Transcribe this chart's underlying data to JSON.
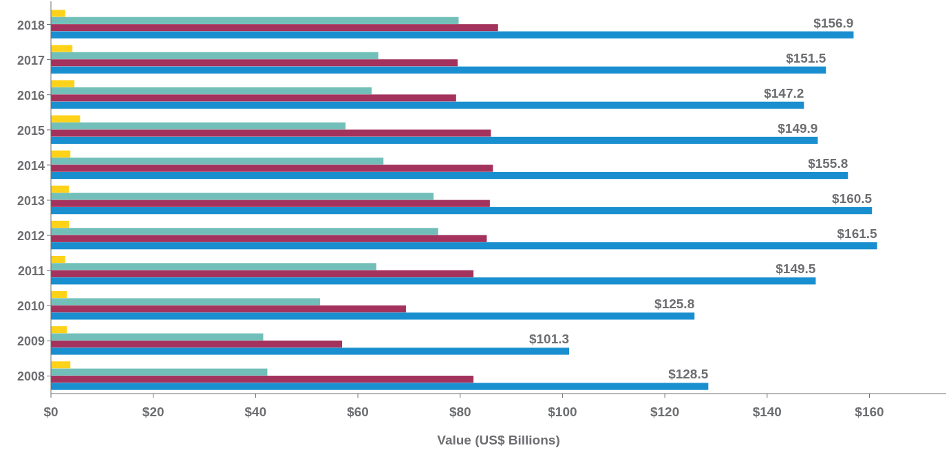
{
  "chart_data": {
    "type": "bar",
    "orientation": "horizontal",
    "xlabel": "Value (US$ Billions)",
    "categories": [
      "2018",
      "2017",
      "2016",
      "2015",
      "2014",
      "2013",
      "2012",
      "2011",
      "2010",
      "2009",
      "2008"
    ],
    "series": [
      {
        "color": "#ffd21a",
        "values": [
          2.8,
          4.2,
          4.6,
          5.7,
          3.8,
          3.5,
          3.5,
          2.8,
          3.1,
          3.1,
          3.8
        ]
      },
      {
        "color": "#72bfb9",
        "values": [
          79.7,
          64.0,
          62.7,
          57.6,
          65.0,
          74.8,
          75.7,
          63.6,
          52.6,
          41.5,
          42.3
        ]
      },
      {
        "color": "#a3325c",
        "values": [
          87.4,
          79.5,
          79.2,
          86.0,
          86.4,
          85.8,
          85.2,
          82.6,
          69.4,
          56.9,
          82.6
        ]
      },
      {
        "color": "#1a8fd0",
        "values": [
          156.9,
          151.5,
          147.2,
          149.9,
          155.8,
          160.5,
          161.5,
          149.5,
          125.8,
          101.3,
          128.5
        ],
        "value_labels": [
          "$156.9",
          "$151.5",
          "$147.2",
          "$149.9",
          "$155.8",
          "$160.5",
          "$161.5",
          "$149.5",
          "$125.8",
          "$101.3",
          "$128.5"
        ]
      }
    ],
    "xlim": [
      0,
      175
    ],
    "xticks": [
      {
        "value": 0,
        "label": "$0"
      },
      {
        "value": 20,
        "label": "$20"
      },
      {
        "value": 40,
        "label": "$40"
      },
      {
        "value": 60,
        "label": "$60"
      },
      {
        "value": 80,
        "label": "$80"
      },
      {
        "value": 100,
        "label": "$100"
      },
      {
        "value": 120,
        "label": "$120"
      },
      {
        "value": 140,
        "label": "$140"
      },
      {
        "value": 160,
        "label": "$160"
      }
    ],
    "grid": false
  }
}
